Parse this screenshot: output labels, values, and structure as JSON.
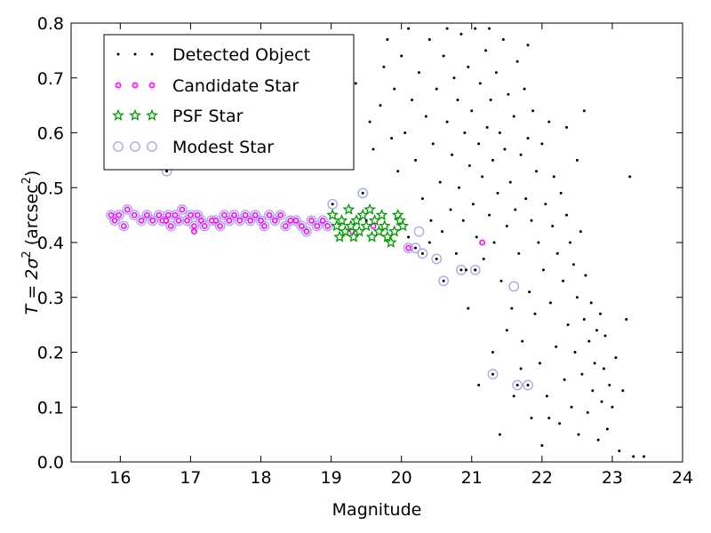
{
  "chart_data": {
    "type": "scatter",
    "xlabel": "Magnitude",
    "ylabel_main": "T = 2σ",
    "ylabel_unit": "(arcsec",
    "ylabel_sup": "2",
    "ylabel_close": ")",
    "xlim": [
      15.3,
      24.0
    ],
    "ylim": [
      0.0,
      0.8
    ],
    "x_ticks": [
      16,
      17,
      18,
      19,
      20,
      21,
      22,
      23,
      24
    ],
    "x_tick_labels": [
      "16",
      "17",
      "18",
      "19",
      "20",
      "21",
      "22",
      "23",
      "24"
    ],
    "y_ticks": [
      0.0,
      0.1,
      0.2,
      0.3,
      0.4,
      0.5,
      0.6,
      0.7,
      0.8
    ],
    "y_tick_labels": [
      "0.0",
      "0.1",
      "0.2",
      "0.3",
      "0.4",
      "0.5",
      "0.6",
      "0.7",
      "0.8"
    ],
    "grid": false,
    "legend_position": "upper-left",
    "series": [
      {
        "name": "Detected Object",
        "marker": "dot",
        "color": "#000000",
        "points": [
          [
            16.66,
            0.53
          ],
          [
            19.55,
            0.62
          ],
          [
            19.6,
            0.57
          ],
          [
            19.7,
            0.65
          ],
          [
            19.75,
            0.72
          ],
          [
            19.8,
            0.77
          ],
          [
            19.86,
            0.59
          ],
          [
            19.9,
            0.68
          ],
          [
            19.95,
            0.53
          ],
          [
            20.0,
            0.74
          ],
          [
            20.05,
            0.6
          ],
          [
            20.1,
            0.79
          ],
          [
            20.15,
            0.66
          ],
          [
            20.2,
            0.55
          ],
          [
            20.25,
            0.71
          ],
          [
            20.3,
            0.48
          ],
          [
            20.35,
            0.63
          ],
          [
            20.4,
            0.77
          ],
          [
            20.42,
            0.44
          ],
          [
            20.45,
            0.58
          ],
          [
            20.5,
            0.68
          ],
          [
            20.55,
            0.51
          ],
          [
            20.58,
            0.42
          ],
          [
            20.6,
            0.74
          ],
          [
            20.65,
            0.62
          ],
          [
            20.7,
            0.46
          ],
          [
            20.72,
            0.56
          ],
          [
            20.75,
            0.7
          ],
          [
            20.78,
            0.38
          ],
          [
            20.8,
            0.66
          ],
          [
            20.82,
            0.5
          ],
          [
            20.85,
            0.78
          ],
          [
            20.88,
            0.44
          ],
          [
            20.9,
            0.6
          ],
          [
            20.92,
            0.35
          ],
          [
            20.95,
            0.72
          ],
          [
            20.97,
            0.54
          ],
          [
            21.0,
            0.64
          ],
          [
            21.02,
            0.47
          ],
          [
            21.05,
            0.79
          ],
          [
            21.07,
            0.41
          ],
          [
            21.1,
            0.58
          ],
          [
            21.12,
            0.69
          ],
          [
            21.15,
            0.52
          ],
          [
            21.17,
            0.37
          ],
          [
            21.2,
            0.75
          ],
          [
            21.22,
            0.61
          ],
          [
            21.25,
            0.45
          ],
          [
            21.27,
            0.66
          ],
          [
            21.3,
            0.55
          ],
          [
            21.32,
            0.4
          ],
          [
            21.35,
            0.71
          ],
          [
            21.37,
            0.49
          ],
          [
            21.4,
            0.6
          ],
          [
            21.42,
            0.33
          ],
          [
            21.45,
            0.77
          ],
          [
            21.47,
            0.57
          ],
          [
            21.5,
            0.43
          ],
          [
            21.52,
            0.67
          ],
          [
            21.55,
            0.51
          ],
          [
            21.57,
            0.28
          ],
          [
            21.6,
            0.63
          ],
          [
            21.62,
            0.46
          ],
          [
            21.65,
            0.73
          ],
          [
            21.67,
            0.38
          ],
          [
            21.7,
            0.56
          ],
          [
            21.72,
            0.22
          ],
          [
            21.75,
            0.68
          ],
          [
            21.77,
            0.48
          ],
          [
            21.8,
            0.59
          ],
          [
            21.82,
            0.31
          ],
          [
            21.85,
            0.44
          ],
          [
            21.87,
            0.64
          ],
          [
            21.9,
            0.27
          ],
          [
            21.92,
            0.53
          ],
          [
            21.95,
            0.4
          ],
          [
            21.97,
            0.18
          ],
          [
            22.0,
            0.58
          ],
          [
            22.02,
            0.35
          ],
          [
            22.05,
            0.47
          ],
          [
            22.07,
            0.12
          ],
          [
            22.1,
            0.62
          ],
          [
            22.12,
            0.29
          ],
          [
            22.15,
            0.43
          ],
          [
            22.17,
            0.52
          ],
          [
            22.2,
            0.21
          ],
          [
            22.22,
            0.38
          ],
          [
            22.25,
            0.07
          ],
          [
            22.27,
            0.49
          ],
          [
            22.3,
            0.33
          ],
          [
            22.32,
            0.15
          ],
          [
            22.35,
            0.45
          ],
          [
            22.37,
            0.25
          ],
          [
            22.4,
            0.4
          ],
          [
            22.42,
            0.1
          ],
          [
            22.45,
            0.36
          ],
          [
            22.47,
            0.2
          ],
          [
            22.5,
            0.3
          ],
          [
            22.52,
            0.05
          ],
          [
            22.55,
            0.42
          ],
          [
            22.57,
            0.16
          ],
          [
            22.6,
            0.26
          ],
          [
            22.62,
            0.34
          ],
          [
            22.65,
            0.09
          ],
          [
            22.67,
            0.22
          ],
          [
            22.7,
            0.29
          ],
          [
            22.72,
            0.13
          ],
          [
            22.75,
            0.18
          ],
          [
            22.78,
            0.24
          ],
          [
            22.8,
            0.04
          ],
          [
            22.83,
            0.27
          ],
          [
            22.85,
            0.11
          ],
          [
            22.88,
            0.17
          ],
          [
            22.9,
            0.23
          ],
          [
            22.93,
            0.06
          ],
          [
            22.96,
            0.14
          ],
          [
            23.0,
            0.1
          ],
          [
            23.05,
            0.19
          ],
          [
            23.1,
            0.02
          ],
          [
            23.15,
            0.13
          ],
          [
            23.3,
            0.01
          ],
          [
            23.45,
            0.01
          ],
          [
            23.25,
            0.52
          ],
          [
            23.2,
            0.26
          ],
          [
            22.6,
            0.64
          ],
          [
            21.05,
            0.35
          ],
          [
            21.1,
            0.14
          ],
          [
            21.3,
            0.2
          ],
          [
            20.95,
            0.28
          ],
          [
            21.6,
            0.12
          ],
          [
            21.85,
            0.08
          ],
          [
            22.0,
            0.03
          ],
          [
            21.4,
            0.05
          ],
          [
            22.35,
            0.61
          ],
          [
            22.5,
            0.55
          ],
          [
            21.8,
            0.76
          ],
          [
            21.25,
            0.79
          ],
          [
            20.65,
            0.79
          ],
          [
            19.5,
            0.44
          ],
          [
            20.1,
            0.41
          ],
          [
            20.4,
            0.4
          ],
          [
            21.5,
            0.24
          ],
          [
            21.7,
            0.17
          ],
          [
            22.1,
            0.08
          ],
          [
            19.02,
            0.47
          ],
          [
            19.45,
            0.49
          ],
          [
            20.2,
            0.39
          ],
          [
            20.3,
            0.38
          ],
          [
            20.5,
            0.37
          ],
          [
            20.6,
            0.33
          ],
          [
            20.85,
            0.35
          ],
          [
            21.05,
            0.35
          ],
          [
            21.3,
            0.16
          ],
          [
            21.65,
            0.14
          ],
          [
            21.8,
            0.14
          ],
          [
            19.35,
            0.69
          ]
        ]
      },
      {
        "name": "Candidate Star",
        "marker": "circle-small",
        "color": "#ff00ff",
        "points": [
          [
            15.87,
            0.45
          ],
          [
            15.92,
            0.44
          ],
          [
            15.98,
            0.45
          ],
          [
            16.05,
            0.43
          ],
          [
            16.1,
            0.46
          ],
          [
            16.2,
            0.45
          ],
          [
            16.3,
            0.44
          ],
          [
            16.38,
            0.45
          ],
          [
            16.46,
            0.44
          ],
          [
            16.55,
            0.45
          ],
          [
            16.6,
            0.44
          ],
          [
            16.68,
            0.45
          ],
          [
            16.72,
            0.43
          ],
          [
            16.78,
            0.45
          ],
          [
            16.83,
            0.44
          ],
          [
            16.88,
            0.46
          ],
          [
            16.95,
            0.44
          ],
          [
            17.0,
            0.45
          ],
          [
            17.05,
            0.43
          ],
          [
            17.1,
            0.45
          ],
          [
            17.15,
            0.44
          ],
          [
            17.2,
            0.43
          ],
          [
            17.3,
            0.44
          ],
          [
            17.36,
            0.44
          ],
          [
            17.42,
            0.43
          ],
          [
            17.48,
            0.45
          ],
          [
            17.55,
            0.44
          ],
          [
            17.62,
            0.45
          ],
          [
            17.7,
            0.44
          ],
          [
            17.78,
            0.45
          ],
          [
            17.85,
            0.44
          ],
          [
            17.92,
            0.45
          ],
          [
            18.0,
            0.44
          ],
          [
            18.05,
            0.43
          ],
          [
            18.12,
            0.45
          ],
          [
            18.2,
            0.44
          ],
          [
            18.28,
            0.45
          ],
          [
            18.35,
            0.43
          ],
          [
            18.42,
            0.44
          ],
          [
            18.5,
            0.44
          ],
          [
            18.58,
            0.43
          ],
          [
            18.65,
            0.42
          ],
          [
            18.72,
            0.44
          ],
          [
            18.8,
            0.43
          ],
          [
            18.88,
            0.44
          ],
          [
            18.95,
            0.43
          ],
          [
            19.3,
            0.42
          ],
          [
            19.6,
            0.43
          ],
          [
            20.1,
            0.39
          ],
          [
            21.15,
            0.4
          ],
          [
            17.05,
            0.42
          ],
          [
            16.65,
            0.44
          ]
        ]
      },
      {
        "name": "PSF Star",
        "marker": "star",
        "color": "#009900",
        "points": [
          [
            19.02,
            0.45
          ],
          [
            19.08,
            0.43
          ],
          [
            19.12,
            0.41
          ],
          [
            19.15,
            0.44
          ],
          [
            19.2,
            0.42
          ],
          [
            19.25,
            0.46
          ],
          [
            19.28,
            0.43
          ],
          [
            19.32,
            0.41
          ],
          [
            19.36,
            0.44
          ],
          [
            19.4,
            0.42
          ],
          [
            19.45,
            0.45
          ],
          [
            19.5,
            0.43
          ],
          [
            19.55,
            0.46
          ],
          [
            19.58,
            0.41
          ],
          [
            19.62,
            0.44
          ],
          [
            19.68,
            0.42
          ],
          [
            19.72,
            0.45
          ],
          [
            19.76,
            0.43
          ],
          [
            19.8,
            0.41
          ],
          [
            19.85,
            0.4
          ],
          [
            19.9,
            0.42
          ],
          [
            19.95,
            0.45
          ],
          [
            19.98,
            0.44
          ],
          [
            20.02,
            0.43
          ]
        ]
      },
      {
        "name": "Modest Star",
        "marker": "circle-large",
        "color": "#aaaaee",
        "points": [
          [
            15.87,
            0.45
          ],
          [
            15.92,
            0.44
          ],
          [
            15.98,
            0.45
          ],
          [
            16.05,
            0.43
          ],
          [
            16.1,
            0.46
          ],
          [
            16.2,
            0.45
          ],
          [
            16.3,
            0.44
          ],
          [
            16.38,
            0.45
          ],
          [
            16.46,
            0.44
          ],
          [
            16.55,
            0.45
          ],
          [
            16.6,
            0.44
          ],
          [
            16.68,
            0.45
          ],
          [
            16.72,
            0.43
          ],
          [
            16.78,
            0.45
          ],
          [
            16.83,
            0.44
          ],
          [
            16.88,
            0.46
          ],
          [
            16.95,
            0.44
          ],
          [
            17.0,
            0.45
          ],
          [
            17.05,
            0.43
          ],
          [
            17.1,
            0.45
          ],
          [
            17.15,
            0.44
          ],
          [
            17.2,
            0.43
          ],
          [
            17.3,
            0.44
          ],
          [
            17.36,
            0.44
          ],
          [
            17.42,
            0.43
          ],
          [
            17.48,
            0.45
          ],
          [
            17.55,
            0.44
          ],
          [
            17.62,
            0.45
          ],
          [
            17.7,
            0.44
          ],
          [
            17.78,
            0.45
          ],
          [
            17.85,
            0.44
          ],
          [
            17.92,
            0.45
          ],
          [
            18.0,
            0.44
          ],
          [
            18.05,
            0.43
          ],
          [
            18.12,
            0.45
          ],
          [
            18.2,
            0.44
          ],
          [
            18.28,
            0.45
          ],
          [
            18.35,
            0.43
          ],
          [
            18.42,
            0.44
          ],
          [
            18.5,
            0.44
          ],
          [
            18.58,
            0.43
          ],
          [
            18.65,
            0.42
          ],
          [
            18.72,
            0.44
          ],
          [
            18.8,
            0.43
          ],
          [
            18.88,
            0.44
          ],
          [
            18.95,
            0.43
          ],
          [
            16.66,
            0.53
          ],
          [
            19.02,
            0.47
          ],
          [
            19.45,
            0.49
          ],
          [
            20.1,
            0.39
          ],
          [
            20.2,
            0.39
          ],
          [
            20.3,
            0.38
          ],
          [
            20.5,
            0.37
          ],
          [
            20.6,
            0.33
          ],
          [
            20.85,
            0.35
          ],
          [
            21.05,
            0.35
          ],
          [
            21.3,
            0.16
          ],
          [
            21.65,
            0.14
          ],
          [
            21.8,
            0.14
          ],
          [
            21.6,
            0.32
          ],
          [
            20.25,
            0.42
          ]
        ]
      }
    ]
  }
}
